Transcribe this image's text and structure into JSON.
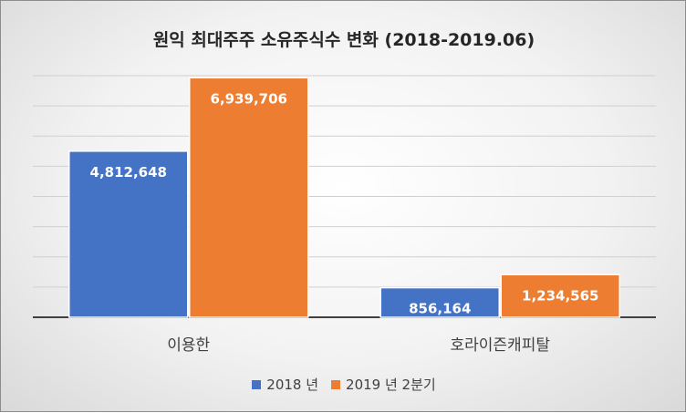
{
  "chart_data": {
    "type": "bar",
    "title": "원익 최대주주 소유주식수 변화 (2018-2019.06)",
    "categories": [
      "이용한",
      "호라이즌캐피탈"
    ],
    "series": [
      {
        "name": "2018 년",
        "color": "#4472C4",
        "values": [
          4812648,
          856164
        ],
        "labels": [
          "4,812,648",
          "856,164"
        ]
      },
      {
        "name": "2019 년 2분기",
        "color": "#ED7D31",
        "values": [
          6939706,
          1234565
        ],
        "labels": [
          "6,939,706",
          "1,234,565"
        ]
      }
    ],
    "ylim": [
      0,
      7000000
    ],
    "gridlines": true,
    "legend_position": "bottom"
  }
}
